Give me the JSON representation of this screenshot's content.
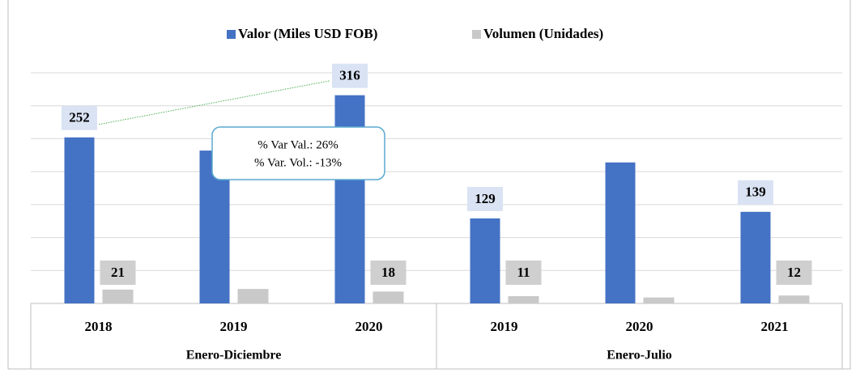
{
  "chart_data": {
    "type": "bar",
    "categories": [
      "2018",
      "2019",
      "2020",
      "2019",
      "2020",
      "2021"
    ],
    "groups": [
      {
        "label": "Enero-Diciembre",
        "span": 3
      },
      {
        "label": "Enero-Julio",
        "span": 3
      }
    ],
    "series": [
      {
        "name": "Valor (Miles USD FOB)",
        "color": "#4472c4",
        "label_color": "#dae3f3",
        "values": [
          252,
          232,
          316,
          129,
          214,
          139
        ],
        "value_labels": [
          "252",
          null,
          "316",
          "129",
          null,
          "139"
        ]
      },
      {
        "name": "Volumen (Unidades)",
        "color": "#c9c9c9",
        "label_color": "#cfcfcf",
        "values": [
          21,
          22,
          18,
          11,
          9,
          12
        ],
        "value_labels": [
          "21",
          null,
          "18",
          "11",
          null,
          "12"
        ]
      }
    ],
    "ylim": [
      0,
      350
    ],
    "yticks": [
      0,
      50,
      100,
      150,
      200,
      250,
      300,
      350
    ],
    "grid": true,
    "legend": "top",
    "annotation": {
      "lines": [
        "% Var Val.: 26%",
        "% Var. Vol.: -13%"
      ]
    }
  }
}
